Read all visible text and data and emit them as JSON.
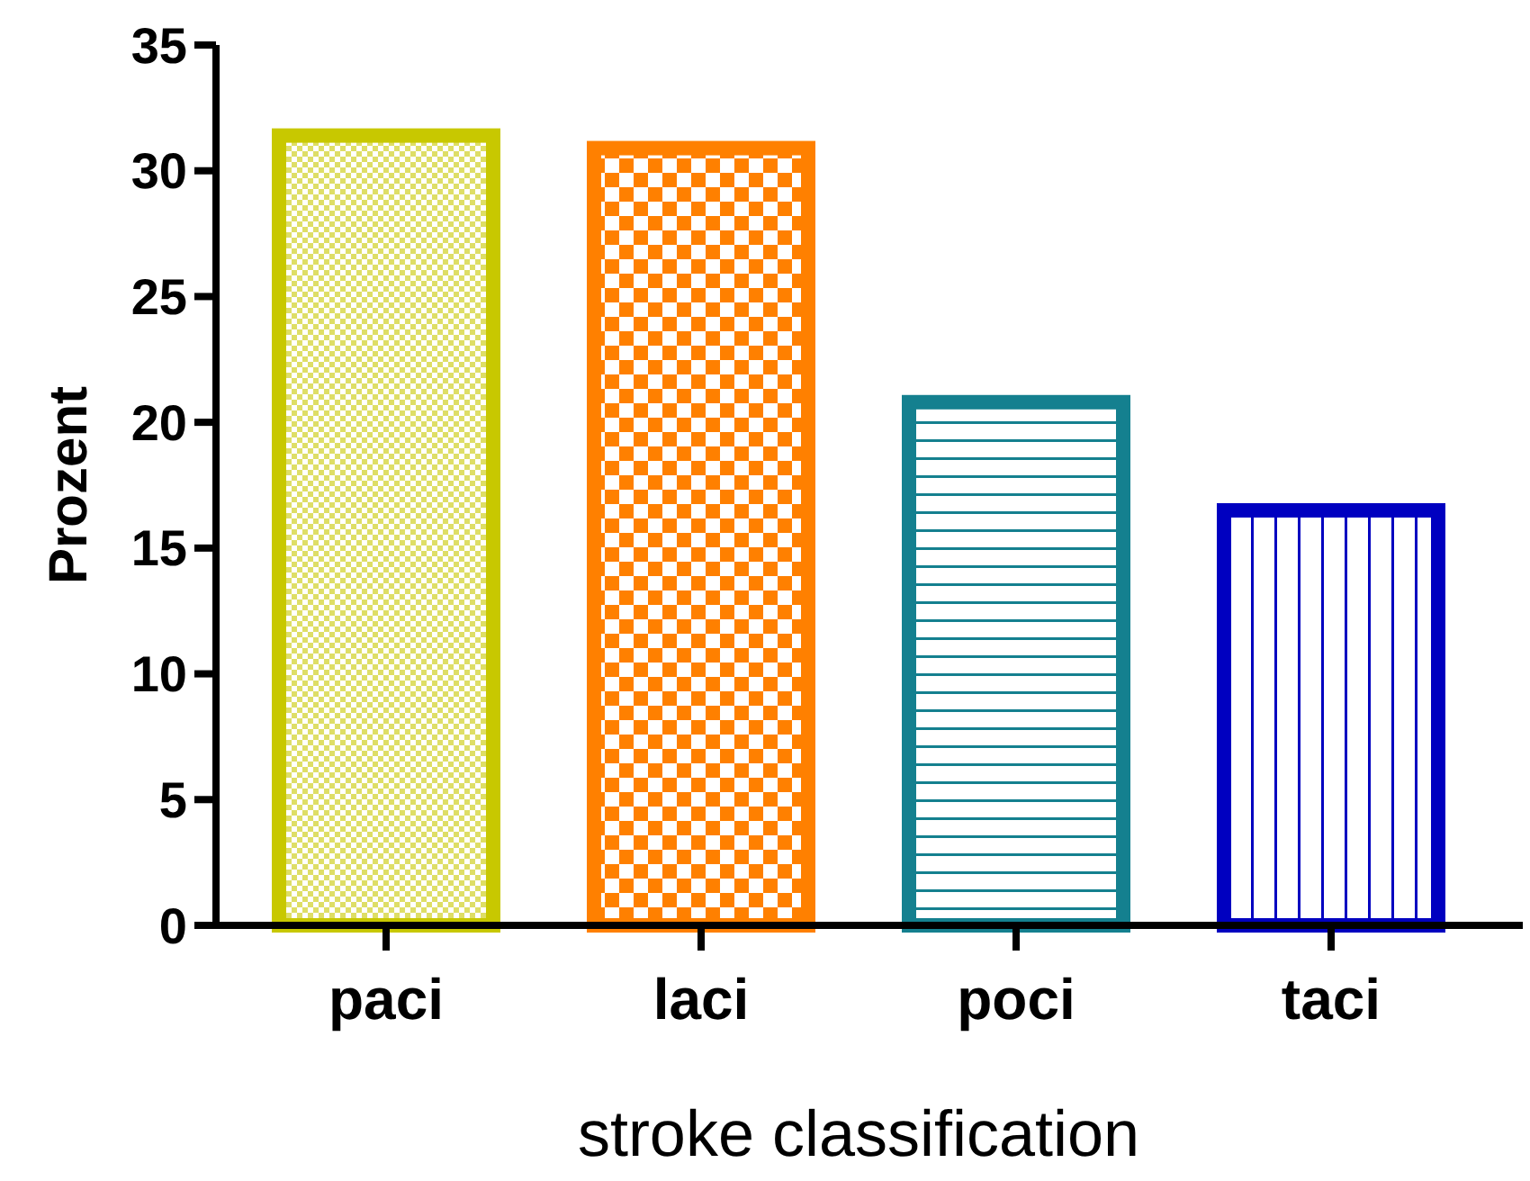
{
  "chart_data": {
    "type": "bar",
    "xlabel": "stroke classification",
    "ylabel": "Prozent",
    "categories": [
      "paci",
      "laci",
      "poci",
      "taci"
    ],
    "values": [
      31.4,
      30.9,
      20.8,
      16.5
    ],
    "colors": [
      "#c8c800",
      "#ff8000",
      "#14808f",
      "#0000c0"
    ],
    "ylim": [
      0,
      35
    ],
    "yticks": [
      0,
      5,
      10,
      15,
      20,
      25,
      30,
      35
    ],
    "grid": false
  }
}
